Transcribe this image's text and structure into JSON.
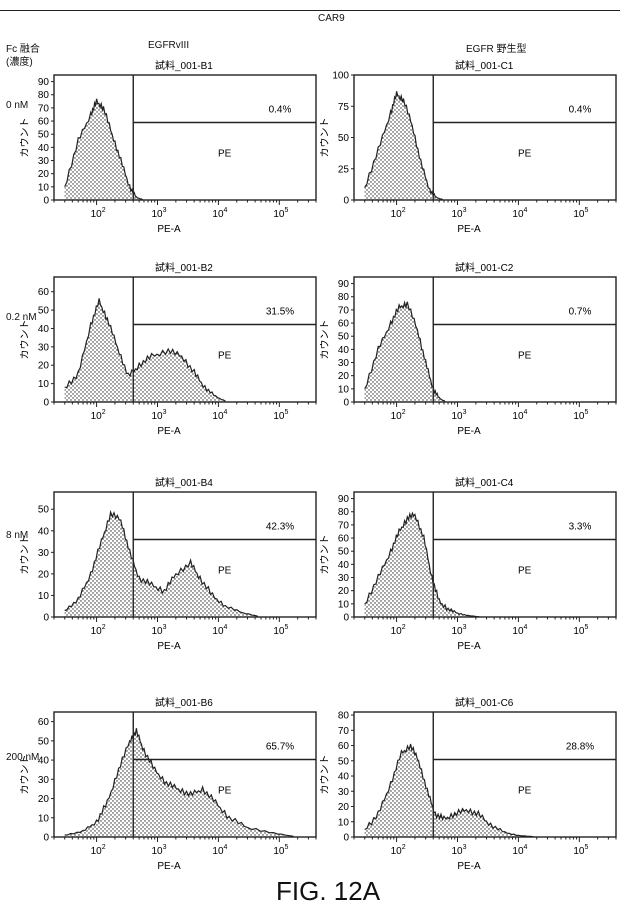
{
  "figure": {
    "header": "CAR9",
    "row_header_line1": "Fc 融合",
    "row_header_line2": "(濃度)",
    "caption": "FIG. 12A"
  },
  "columns": [
    {
      "title": "EGFRvIII"
    },
    {
      "title": "EGFR 野生型"
    }
  ],
  "rows": [
    {
      "concentration": "0 nM"
    },
    {
      "concentration": "0.2 nM"
    },
    {
      "concentration": "8 nM"
    },
    {
      "concentration": "200 nM"
    }
  ],
  "chart_data": [
    {
      "type": "area",
      "sample": "試料_001-B1",
      "gate_label": "PE",
      "gate_percent": "0.4%",
      "xlabel": "PE-A",
      "ylabel": "カウント",
      "x_scale": "log",
      "xlim": [
        20,
        400000
      ],
      "x_tick_labels": [
        "10^2",
        "10^3",
        "10^4",
        "10^5"
      ],
      "ylim": [
        0,
        95
      ],
      "y_ticks": [
        0,
        10,
        20,
        30,
        40,
        50,
        60,
        70,
        80,
        90
      ],
      "gate_x": 400,
      "x": [
        30,
        50,
        80,
        100,
        130,
        180,
        250,
        350,
        450,
        600
      ],
      "y": [
        10,
        45,
        65,
        75,
        70,
        50,
        30,
        10,
        2,
        0
      ]
    },
    {
      "type": "area",
      "sample": "試料_001-C1",
      "gate_label": "PE",
      "gate_percent": "0.4%",
      "xlabel": "PE-A",
      "ylabel": "カウント",
      "x_scale": "log",
      "xlim": [
        20,
        400000
      ],
      "x_tick_labels": [
        "10^2",
        "10^3",
        "10^4",
        "10^5"
      ],
      "ylim": [
        0,
        100
      ],
      "y_ticks": [
        0,
        25,
        50,
        75,
        100
      ],
      "gate_x": 400,
      "x": [
        30,
        50,
        80,
        100,
        130,
        180,
        250,
        350,
        450,
        600
      ],
      "y": [
        10,
        40,
        70,
        85,
        80,
        60,
        30,
        8,
        2,
        0
      ]
    },
    {
      "type": "area",
      "sample": "試料_001-B2",
      "gate_label": "PE",
      "gate_percent": "31.5%",
      "xlabel": "PE-A",
      "ylabel": "カウント",
      "x_scale": "log",
      "xlim": [
        20,
        400000
      ],
      "x_tick_labels": [
        "10^2",
        "10^3",
        "10^4",
        "10^5"
      ],
      "ylim": [
        0,
        68
      ],
      "y_ticks": [
        0,
        10,
        20,
        30,
        40,
        50,
        60
      ],
      "gate_x": 400,
      "x": [
        30,
        50,
        80,
        110,
        150,
        220,
        330,
        500,
        800,
        1500,
        2500,
        4000,
        6000,
        9000,
        14000
      ],
      "y": [
        8,
        15,
        42,
        55,
        45,
        30,
        14,
        20,
        25,
        28,
        25,
        16,
        8,
        3,
        0
      ]
    },
    {
      "type": "area",
      "sample": "試料_001-C2",
      "gate_label": "PE",
      "gate_percent": "0.7%",
      "xlabel": "PE-A",
      "ylabel": "カウント",
      "x_scale": "log",
      "xlim": [
        20,
        400000
      ],
      "x_tick_labels": [
        "10^2",
        "10^3",
        "10^4",
        "10^5"
      ],
      "ylim": [
        0,
        95
      ],
      "y_ticks": [
        0,
        10,
        20,
        30,
        40,
        50,
        60,
        70,
        80,
        90
      ],
      "gate_x": 400,
      "x": [
        30,
        50,
        80,
        110,
        150,
        220,
        300,
        400,
        500,
        650
      ],
      "y": [
        10,
        40,
        60,
        72,
        75,
        55,
        30,
        10,
        3,
        0
      ]
    },
    {
      "type": "area",
      "sample": "試料_001-B4",
      "gate_label": "PE",
      "gate_percent": "42.3%",
      "xlabel": "PE-A",
      "ylabel": "カウント",
      "x_scale": "log",
      "xlim": [
        20,
        400000
      ],
      "x_tick_labels": [
        "10^2",
        "10^3",
        "10^4",
        "10^5"
      ],
      "ylim": [
        0,
        58
      ],
      "y_ticks": [
        0,
        10,
        20,
        30,
        40,
        50
      ],
      "gate_x": 400,
      "x": [
        30,
        50,
        80,
        120,
        170,
        250,
        350,
        500,
        800,
        1300,
        2000,
        3500,
        5000,
        8000,
        13000,
        25000,
        50000
      ],
      "y": [
        3,
        8,
        20,
        35,
        48,
        45,
        30,
        18,
        15,
        12,
        20,
        25,
        18,
        10,
        5,
        2,
        0
      ]
    },
    {
      "type": "area",
      "sample": "試料_001-C4",
      "gate_label": "PE",
      "gate_percent": "3.3%",
      "xlabel": "PE-A",
      "ylabel": "カウント",
      "x_scale": "log",
      "xlim": [
        20,
        400000
      ],
      "x_tick_labels": [
        "10^2",
        "10^3",
        "10^4",
        "10^5"
      ],
      "ylim": [
        0,
        95
      ],
      "y_ticks": [
        0,
        10,
        20,
        30,
        40,
        50,
        60,
        70,
        80,
        90
      ],
      "gate_x": 400,
      "x": [
        30,
        50,
        80,
        110,
        150,
        200,
        280,
        380,
        500,
        700,
        1000,
        1500,
        2500
      ],
      "y": [
        10,
        30,
        50,
        65,
        75,
        78,
        60,
        30,
        12,
        6,
        3,
        1,
        0
      ]
    },
    {
      "type": "area",
      "sample": "試料_001-B6",
      "gate_label": "PE",
      "gate_percent": "65.7%",
      "xlabel": "PE-A",
      "ylabel": "カウント",
      "x_scale": "log",
      "xlim": [
        20,
        400000
      ],
      "x_tick_labels": [
        "10^2",
        "10^3",
        "10^4",
        "10^5"
      ],
      "ylim": [
        0,
        65
      ],
      "y_ticks": [
        0,
        10,
        20,
        30,
        40,
        50,
        60
      ],
      "gate_x": 400,
      "x": [
        30,
        60,
        100,
        150,
        230,
        350,
        450,
        600,
        900,
        1400,
        2200,
        3500,
        5500,
        9000,
        15000,
        30000,
        80000,
        200000
      ],
      "y": [
        1,
        3,
        8,
        18,
        35,
        50,
        55,
        45,
        35,
        28,
        25,
        22,
        25,
        18,
        10,
        5,
        2,
        0
      ]
    },
    {
      "type": "area",
      "sample": "試料_001-C6",
      "gate_label": "PE",
      "gate_percent": "28.8%",
      "xlabel": "PE-A",
      "ylabel": "カウント",
      "x_scale": "log",
      "xlim": [
        20,
        400000
      ],
      "x_tick_labels": [
        "10^2",
        "10^3",
        "10^4",
        "10^5"
      ],
      "ylim": [
        0,
        82
      ],
      "y_ticks": [
        0,
        10,
        20,
        30,
        40,
        50,
        60,
        70,
        80
      ],
      "gate_x": 400,
      "x": [
        30,
        50,
        80,
        120,
        170,
        230,
        320,
        430,
        600,
        900,
        1400,
        2200,
        3500,
        6000,
        10000,
        20000
      ],
      "y": [
        5,
        15,
        35,
        55,
        60,
        50,
        30,
        15,
        12,
        15,
        18,
        15,
        8,
        3,
        1,
        0
      ]
    }
  ]
}
